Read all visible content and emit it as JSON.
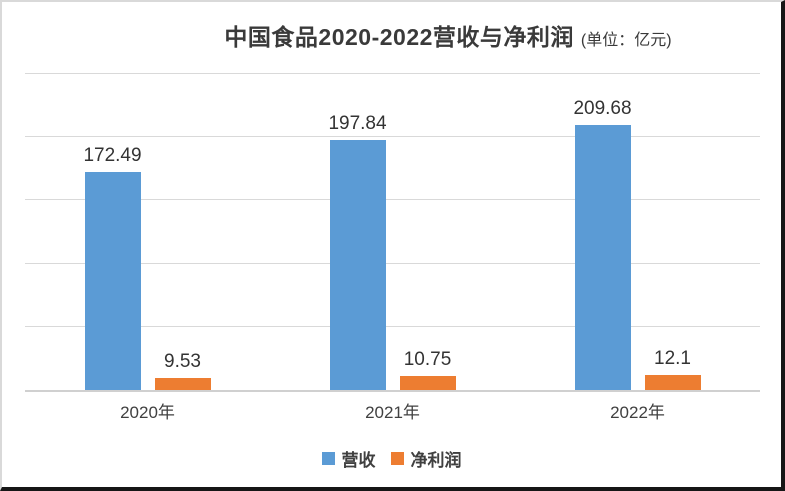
{
  "title": {
    "main": "中国食品2020-2022营收与净利润",
    "unit": "(单位：亿元)"
  },
  "colors": {
    "revenue": "#5B9BD5",
    "net_profit": "#ED7D31",
    "gridline": "#d9d9d9",
    "axis_line": "#d0d0d0",
    "text": "#404040"
  },
  "chart_data": {
    "type": "bar",
    "title": "中国食品2020-2022营收与净利润",
    "subtitle_unit": "(单位：亿元)",
    "categories": [
      "2020年",
      "2021年",
      "2022年"
    ],
    "series": [
      {
        "key": "revenue",
        "name": "营收",
        "color": "#5B9BD5",
        "values": [
          172.49,
          197.84,
          209.68
        ]
      },
      {
        "key": "net-profit",
        "name": "净利润",
        "color": "#ED7D31",
        "values": [
          9.53,
          10.75,
          12.1
        ]
      }
    ],
    "ylim": [
      0,
      250
    ],
    "gridline_step": 50,
    "grid": true,
    "y_axis_labels_visible": false,
    "data_labels": true,
    "legend_position": "bottom"
  },
  "legend": {
    "items": [
      {
        "label": "营收",
        "color": "#5B9BD5"
      },
      {
        "label": "净利润",
        "color": "#ED7D31"
      }
    ]
  }
}
